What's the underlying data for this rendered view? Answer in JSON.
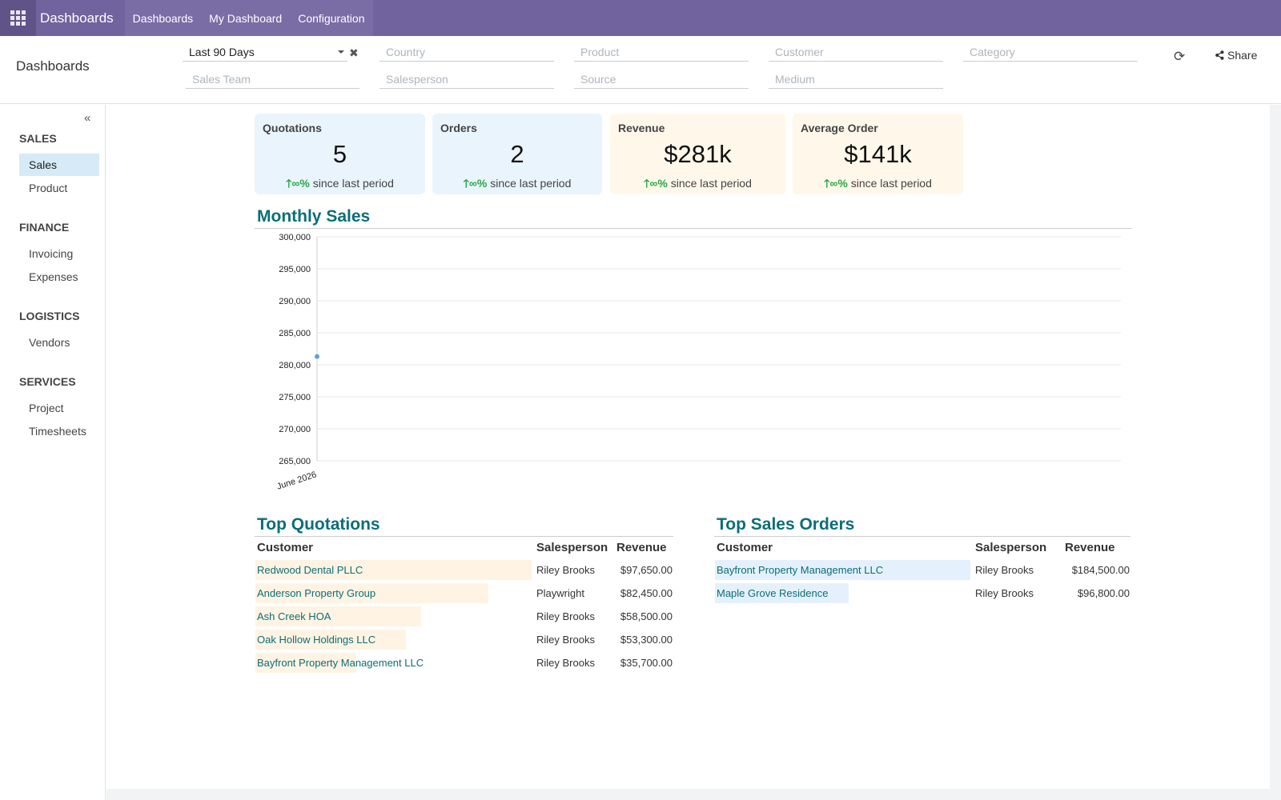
{
  "navbar": {
    "apps_icon": "apps-grid-icon",
    "brand": "Dashboards",
    "menu": [
      "Dashboards",
      "My Dashboard",
      "Configuration"
    ]
  },
  "control": {
    "title": "Dashboards",
    "date_filter": "Last 90 Days",
    "filters": {
      "country": "Country",
      "product": "Product",
      "customer": "Customer",
      "category": "Category",
      "sales_team": "Sales Team",
      "salesperson": "Salesperson",
      "source": "Source",
      "medium": "Medium"
    },
    "share_label": "Share"
  },
  "sidebar": {
    "sections": [
      {
        "title": "SALES",
        "items": [
          "Sales",
          "Product"
        ]
      },
      {
        "title": "FINANCE",
        "items": [
          "Invoicing",
          "Expenses"
        ]
      },
      {
        "title": "LOGISTICS",
        "items": [
          "Vendors"
        ]
      },
      {
        "title": "SERVICES",
        "items": [
          "Project",
          "Timesheets"
        ]
      }
    ],
    "active_item": "Sales"
  },
  "kpis": [
    {
      "title": "Quotations",
      "value": "5",
      "trend": "∞%",
      "trend_text": "since last period"
    },
    {
      "title": "Orders",
      "value": "2",
      "trend": "∞%",
      "trend_text": "since last period"
    },
    {
      "title": "Revenue",
      "value": "$281k",
      "trend": "∞%",
      "trend_text": "since last period"
    },
    {
      "title": "Average Order",
      "value": "$141k",
      "trend": "∞%",
      "trend_text": "since last period"
    }
  ],
  "monthly_sales": {
    "title": "Monthly Sales"
  },
  "chart_data": {
    "type": "line",
    "title": "Monthly Sales",
    "x": [
      "June 2026"
    ],
    "series": [
      {
        "values": [
          281300
        ]
      }
    ],
    "ylim": [
      265000,
      300000
    ],
    "yticks": [
      "300,000",
      "295,000",
      "290,000",
      "285,000",
      "280,000",
      "275,000",
      "270,000",
      "265,000"
    ],
    "ytick_values": [
      300000,
      295000,
      290000,
      285000,
      280000,
      275000,
      270000,
      265000
    ],
    "grid": true,
    "color": "#5aa5dc"
  },
  "top_quotations": {
    "title": "Top Quotations",
    "headers": [
      "Customer",
      "Salesperson",
      "Revenue"
    ],
    "rows": [
      {
        "customer": "Redwood Dental PLLC",
        "salesperson": "Riley Brooks",
        "revenue": "$97,650.00",
        "value": 97650
      },
      {
        "customer": "Anderson Property Group",
        "salesperson": "Playwright",
        "revenue": "$82,450.00",
        "value": 82450
      },
      {
        "customer": "Ash Creek HOA",
        "salesperson": "Riley Brooks",
        "revenue": "$58,500.00",
        "value": 58500
      },
      {
        "customer": "Oak Hollow Holdings LLC",
        "salesperson": "Riley Brooks",
        "revenue": "$53,300.00",
        "value": 53300
      },
      {
        "customer": "Bayfront Property Management LLC",
        "salesperson": "Riley Brooks",
        "revenue": "$35,700.00",
        "value": 35700
      }
    ]
  },
  "top_sales_orders": {
    "title": "Top Sales Orders",
    "headers": [
      "Customer",
      "Salesperson",
      "Revenue"
    ],
    "rows": [
      {
        "customer": "Bayfront Property Management LLC",
        "salesperson": "Riley Brooks",
        "revenue": "$184,500.00",
        "value": 184500
      },
      {
        "customer": "Maple Grove Residence",
        "salesperson": "Riley Brooks",
        "revenue": "$96,800.00",
        "value": 96800
      }
    ]
  }
}
